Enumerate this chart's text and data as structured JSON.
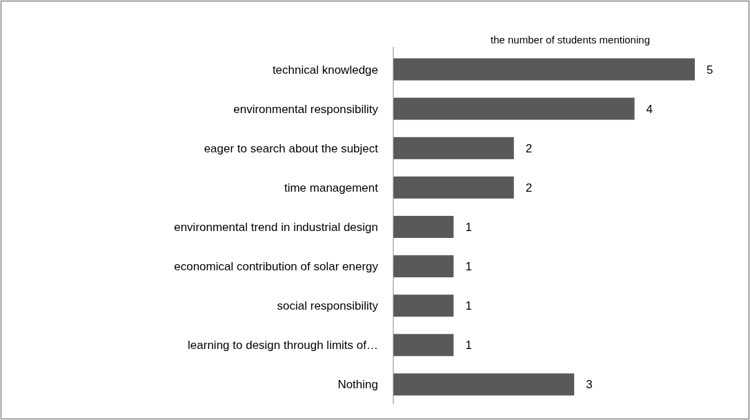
{
  "chart_data": {
    "type": "bar",
    "orientation": "horizontal",
    "xlabel": "the number of students mentioning",
    "categories": [
      "technical knowledge",
      "environmental responsibility",
      "eager to search about the subject",
      "time management",
      "environmental trend in industrial design",
      "economical contribution of solar energy",
      "social responsibility",
      "learning to design through limits of…",
      "Nothing"
    ],
    "values": [
      5,
      4,
      2,
      2,
      1,
      1,
      1,
      1,
      3
    ],
    "color": "#595959",
    "xlim": [
      0,
      5
    ],
    "data_labels": true,
    "tick_labels": "y"
  }
}
